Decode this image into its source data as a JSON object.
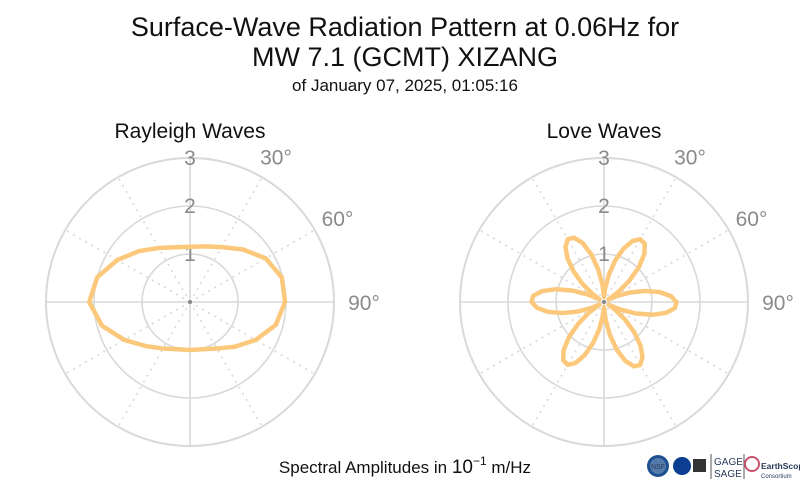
{
  "figure": {
    "title_line1": "Surface-Wave Radiation Pattern at 0.06Hz for",
    "title_line2": "MW 7.1 (GCMT) XIZANG",
    "subtitle": "of January 07, 2025, 01:05:16",
    "footer_prefix": "Spectral Amplitudes in ",
    "footer_base": "10",
    "footer_exp": "−1",
    "footer_unit": " m/Hz"
  },
  "logos": {
    "nsf": "NSF",
    "gage": "GAGE",
    "sage": "SAGE",
    "earthscope": "EarthScope",
    "consortium": "Consortium"
  },
  "colors": {
    "pattern": "#fbc87c",
    "grid": "#d9d9d9",
    "labels": "#8a8a8a"
  },
  "chart_data": [
    {
      "type": "polar-line",
      "title": "Rayleigh Waves",
      "r_ticks": [
        "1",
        "2",
        "3"
      ],
      "r_max": 3,
      "angle_labels": [
        "30°",
        "60°",
        "90°"
      ],
      "angle_direction": "clockwise from north",
      "grid": true,
      "series": [
        {
          "angles_deg": [
            0,
            15,
            30,
            45,
            60,
            75,
            90,
            105,
            120,
            135,
            150,
            165,
            180,
            195,
            210,
            225,
            240,
            255,
            270,
            285,
            300,
            315,
            330,
            345
          ],
          "r": [
            1.15,
            1.2,
            1.32,
            1.55,
            1.82,
            1.98,
            1.98,
            1.85,
            1.58,
            1.32,
            1.12,
            1.02,
            1.0,
            1.02,
            1.12,
            1.3,
            1.58,
            1.9,
            2.1,
            2.0,
            1.75,
            1.5,
            1.3,
            1.18
          ]
        }
      ]
    },
    {
      "type": "polar-line",
      "title": "Love Waves",
      "r_ticks": [
        "1",
        "2",
        "3"
      ],
      "r_max": 3,
      "angle_labels": [
        "30°",
        "60°",
        "90°"
      ],
      "angle_direction": "clockwise from north",
      "grid": true,
      "series": [
        {
          "angles_deg": [
            0,
            5,
            10,
            15,
            20,
            25,
            30,
            35,
            40,
            45,
            50,
            55,
            60,
            65,
            70,
            75,
            80,
            85,
            90,
            95,
            100,
            105,
            110,
            115,
            120,
            125,
            130,
            135,
            140,
            145,
            150,
            155,
            160,
            165,
            170,
            175,
            180,
            185,
            190,
            195,
            200,
            205,
            210,
            215,
            220,
            225,
            230,
            235,
            240,
            245,
            250,
            255,
            260,
            265,
            270,
            275,
            280,
            285,
            290,
            295,
            300,
            305,
            310,
            315,
            320,
            325,
            330,
            335,
            340,
            345,
            350,
            355
          ],
          "r": [
            0.11,
            0.29,
            0.58,
            0.89,
            1.18,
            1.4,
            1.51,
            1.48,
            1.31,
            1.03,
            0.69,
            0.36,
            0.11,
            0.29,
            0.58,
            0.89,
            1.18,
            1.4,
            1.51,
            1.48,
            1.31,
            1.03,
            0.69,
            0.36,
            0.11,
            0.29,
            0.58,
            0.89,
            1.18,
            1.4,
            1.51,
            1.48,
            1.31,
            1.03,
            0.69,
            0.36,
            0.11,
            0.29,
            0.58,
            0.89,
            1.18,
            1.4,
            1.51,
            1.48,
            1.31,
            1.03,
            0.69,
            0.36,
            0.11,
            0.29,
            0.58,
            0.89,
            1.18,
            1.4,
            1.51,
            1.48,
            1.31,
            1.03,
            0.69,
            0.36,
            0.11,
            0.29,
            0.58,
            0.89,
            1.18,
            1.4,
            1.51,
            1.48,
            1.31,
            1.03,
            0.69,
            0.36
          ]
        }
      ]
    }
  ]
}
